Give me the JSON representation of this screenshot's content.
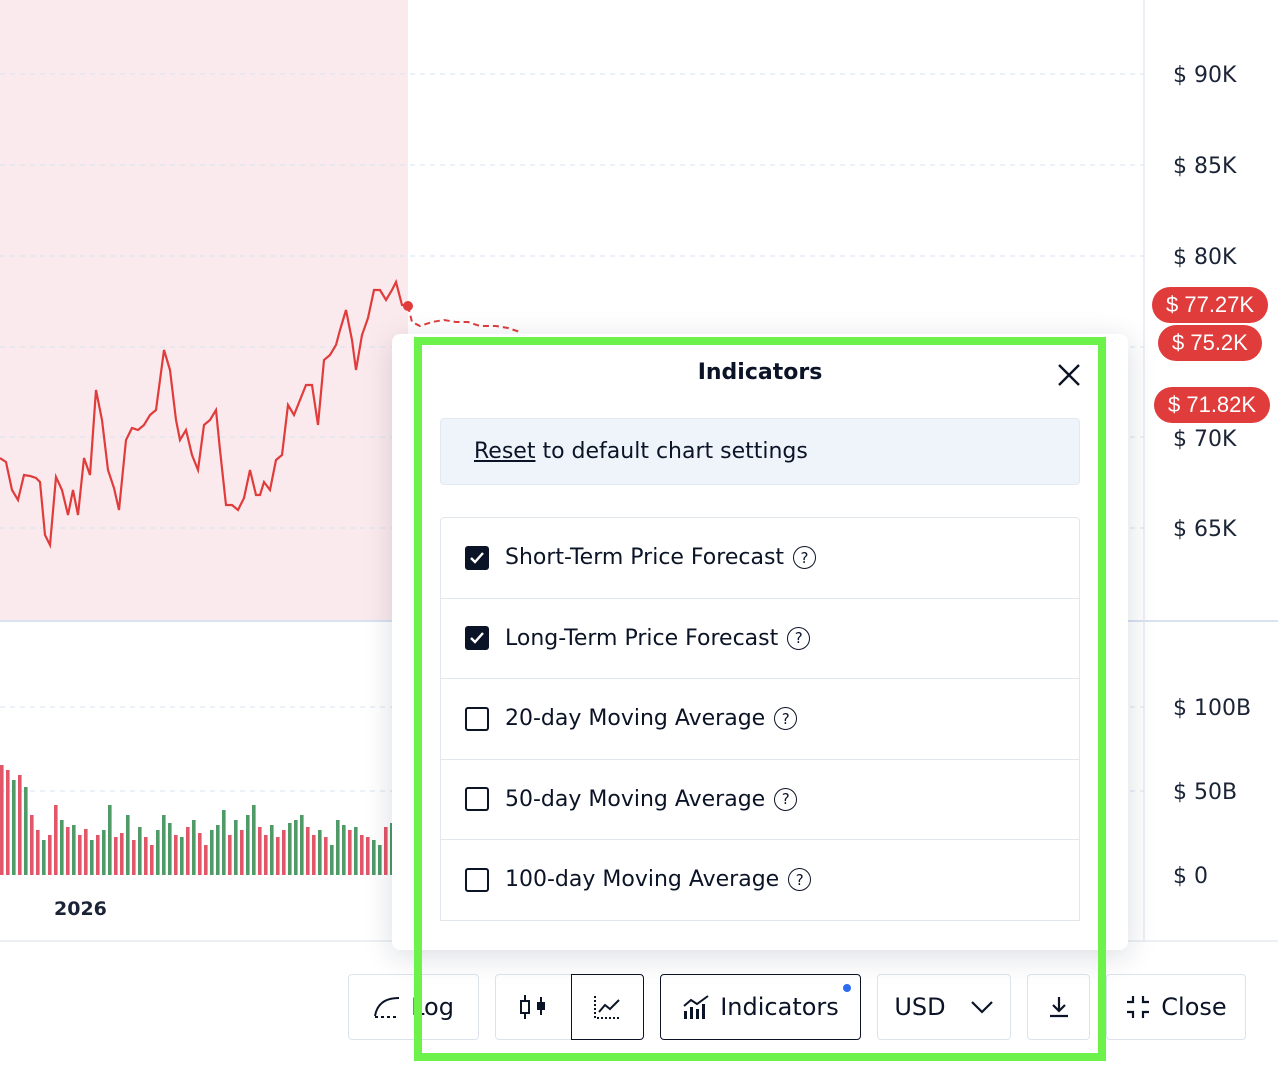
{
  "chart": {
    "price_axis_labels": [
      "$ 90K",
      "$ 85K",
      "$ 80K",
      "$ 70K",
      "$ 65K"
    ],
    "volume_axis_labels": [
      "$ 100B",
      "$ 50B",
      "$ 0"
    ],
    "x_axis_label": "2026",
    "badges": [
      "$ 77.27K",
      "$ 75.2K",
      "$ 71.82K"
    ],
    "colors": {
      "line": "#e03c3c",
      "up": "#4f9a67",
      "down": "#e2566a",
      "grid": "#d9e2f0",
      "shade": "#fbeaed"
    }
  },
  "toolbar": {
    "log_label": "Log",
    "indicators_label": "Indicators",
    "currency_label": "USD",
    "close_label": "Close",
    "icons": [
      "log-scale-icon",
      "candlestick-icon",
      "line-chart-icon",
      "indicators-icon",
      "chevron-down-icon",
      "download-icon",
      "collapse-icon"
    ]
  },
  "indicators_panel": {
    "title": "Indicators",
    "reset_link": "Reset",
    "reset_text": " to default chart settings",
    "items": [
      {
        "label": "Short-Term Price Forecast",
        "checked": true
      },
      {
        "label": "Long-Term Price Forecast",
        "checked": true
      },
      {
        "label": "20-day Moving Average",
        "checked": false
      },
      {
        "label": "50-day Moving Average",
        "checked": false
      },
      {
        "label": "100-day Moving Average",
        "checked": false
      }
    ],
    "help_glyph": "?"
  }
}
